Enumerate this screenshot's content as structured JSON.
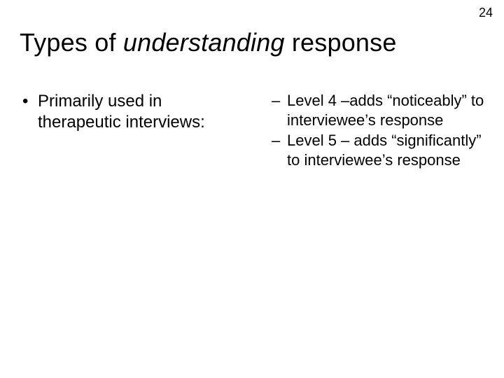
{
  "page_number": "24",
  "title": {
    "prefix": "Types of  ",
    "italic": "understanding",
    "suffix": " response"
  },
  "left": {
    "bullet": "Primarily used in therapeutic interviews:"
  },
  "right": {
    "items": [
      "Level 4 –adds “noticeably” to interviewee’s response",
      " Level 5 – adds “significantly” to interviewee’s response"
    ]
  },
  "style": {
    "background_color": "#ffffff",
    "text_color": "#000000",
    "title_fontsize": 36,
    "body_fontsize": 24,
    "sub_fontsize": 22
  }
}
